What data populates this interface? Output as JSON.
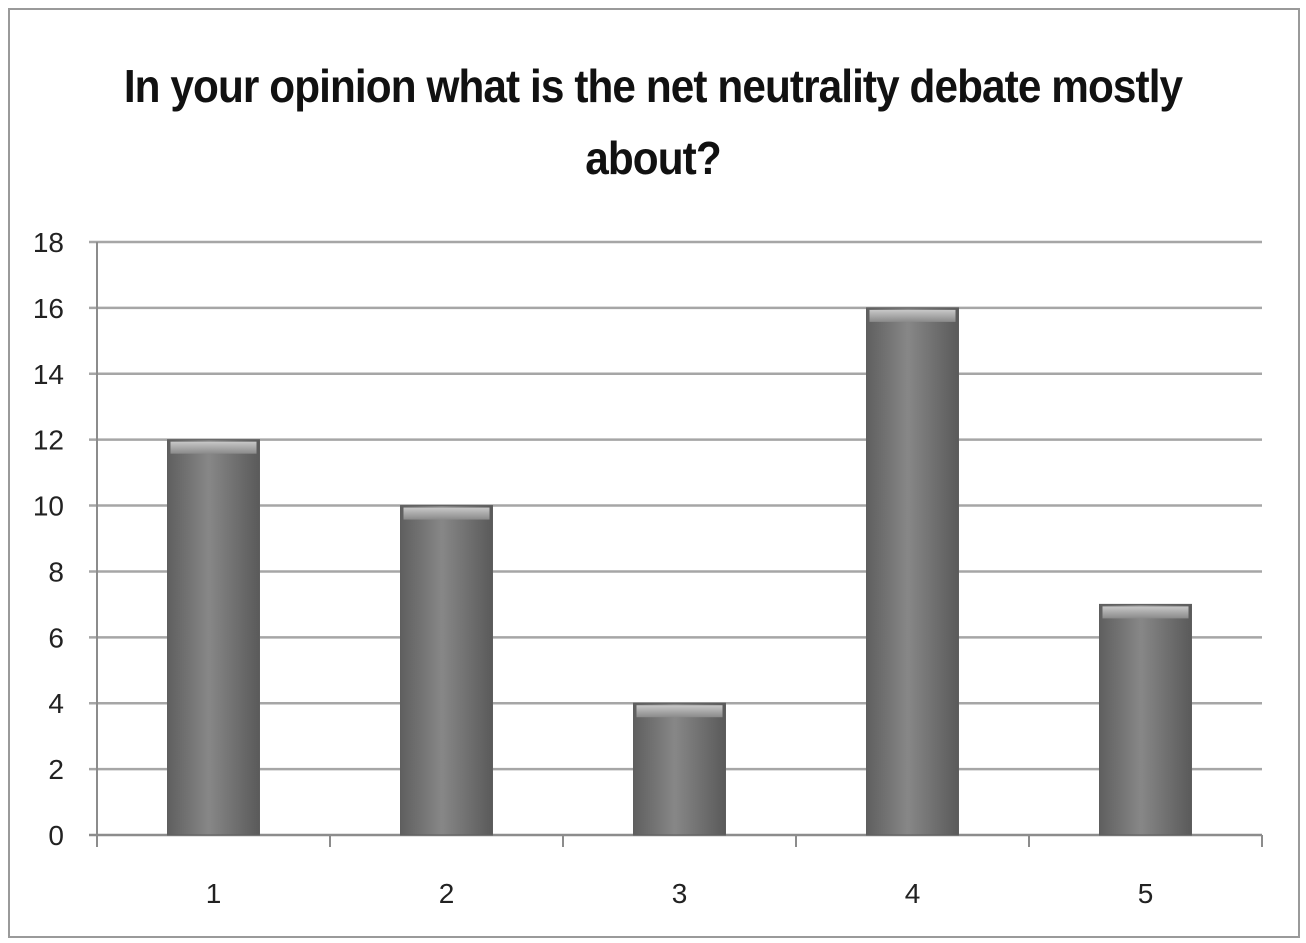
{
  "chart_data": {
    "type": "bar",
    "title": "In your opinion what is the net neutrality debate mostly about?",
    "categories": [
      "1",
      "2",
      "3",
      "4",
      "5"
    ],
    "values": [
      12,
      10,
      4,
      16,
      7
    ],
    "xlabel": "",
    "ylabel": "",
    "ylim": [
      0,
      18
    ],
    "yticks": [
      "0",
      "2",
      "4",
      "6",
      "8",
      "10",
      "12",
      "14",
      "16",
      "18"
    ],
    "grid": true,
    "legend": "none",
    "colors": {
      "bar": "#7a7a7a",
      "bar_edge": "#5e5e5e",
      "bar_highlight": "#b8b8b8",
      "gridline": "#a6a6a6",
      "axis": "#8c8c8c"
    }
  }
}
